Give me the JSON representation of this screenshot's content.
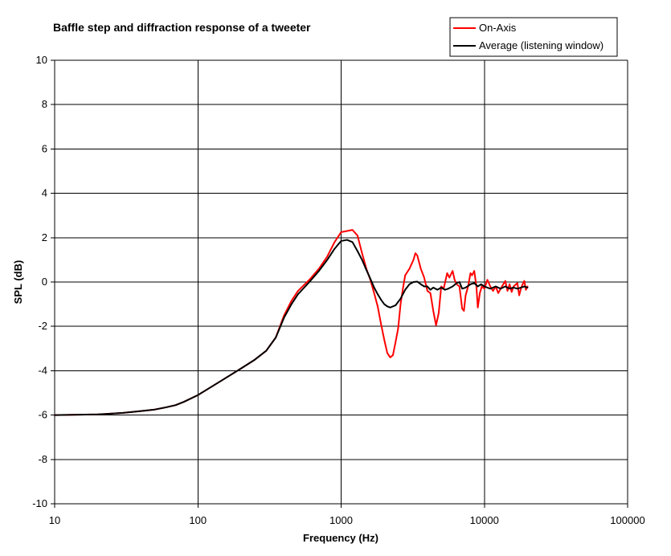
{
  "chart_data": {
    "type": "line",
    "title": "Baffle step and diffraction response of a tweeter",
    "xlabel": "Frequency (Hz)",
    "ylabel": "SPL (dB)",
    "x_scale": "log",
    "xlim": [
      10,
      100000
    ],
    "ylim": [
      -10,
      10
    ],
    "x_ticks": [
      "10",
      "100",
      "1000",
      "10000",
      "100000"
    ],
    "y_ticks": [
      "10",
      "8",
      "6",
      "4",
      "2",
      "0",
      "-2",
      "-4",
      "-6",
      "-8",
      "-10"
    ],
    "grid": "major",
    "legend_position": "top-right",
    "series": [
      {
        "name": "On-Axis",
        "color": "#ff0000",
        "points": [
          [
            10,
            -6.0
          ],
          [
            20,
            -5.97
          ],
          [
            30,
            -5.9
          ],
          [
            40,
            -5.82
          ],
          [
            50,
            -5.75
          ],
          [
            60,
            -5.65
          ],
          [
            70,
            -5.55
          ],
          [
            80,
            -5.4
          ],
          [
            100,
            -5.1
          ],
          [
            150,
            -4.4
          ],
          [
            200,
            -3.9
          ],
          [
            250,
            -3.5
          ],
          [
            300,
            -3.1
          ],
          [
            350,
            -2.5
          ],
          [
            400,
            -1.5
          ],
          [
            450,
            -0.85
          ],
          [
            500,
            -0.4
          ],
          [
            600,
            0.1
          ],
          [
            700,
            0.6
          ],
          [
            800,
            1.15
          ],
          [
            900,
            1.8
          ],
          [
            1000,
            2.25
          ],
          [
            1100,
            2.3
          ],
          [
            1200,
            2.35
          ],
          [
            1300,
            2.1
          ],
          [
            1400,
            1.3
          ],
          [
            1500,
            0.6
          ],
          [
            1600,
            0.1
          ],
          [
            1700,
            -0.5
          ],
          [
            1800,
            -1.1
          ],
          [
            1900,
            -1.9
          ],
          [
            2000,
            -2.6
          ],
          [
            2100,
            -3.2
          ],
          [
            2200,
            -3.4
          ],
          [
            2300,
            -3.3
          ],
          [
            2400,
            -2.7
          ],
          [
            2500,
            -2.1
          ],
          [
            2600,
            -1.0
          ],
          [
            2700,
            -0.3
          ],
          [
            2800,
            0.3
          ],
          [
            3000,
            0.6
          ],
          [
            3200,
            1.0
          ],
          [
            3300,
            1.3
          ],
          [
            3400,
            1.2
          ],
          [
            3600,
            0.6
          ],
          [
            3800,
            0.2
          ],
          [
            4000,
            -0.4
          ],
          [
            4200,
            -0.5
          ],
          [
            4400,
            -1.3
          ],
          [
            4600,
            -1.95
          ],
          [
            4800,
            -1.4
          ],
          [
            5000,
            -0.2
          ],
          [
            5200,
            -0.3
          ],
          [
            5500,
            0.4
          ],
          [
            5700,
            0.2
          ],
          [
            6000,
            0.5
          ],
          [
            6200,
            0.1
          ],
          [
            6400,
            -0.1
          ],
          [
            6700,
            -0.2
          ],
          [
            7000,
            -1.2
          ],
          [
            7200,
            -1.3
          ],
          [
            7400,
            -0.6
          ],
          [
            7700,
            -0.2
          ],
          [
            8000,
            0.4
          ],
          [
            8200,
            0.3
          ],
          [
            8500,
            0.5
          ],
          [
            8800,
            -0.2
          ],
          [
            9000,
            -1.15
          ],
          [
            9300,
            -0.5
          ],
          [
            9600,
            -0.2
          ],
          [
            10000,
            -0.3
          ],
          [
            10500,
            0.1
          ],
          [
            11000,
            -0.2
          ],
          [
            11500,
            -0.4
          ],
          [
            12000,
            -0.2
          ],
          [
            12500,
            -0.5
          ],
          [
            13000,
            -0.3
          ],
          [
            14000,
            0.05
          ],
          [
            14500,
            -0.4
          ],
          [
            15000,
            -0.1
          ],
          [
            15500,
            -0.45
          ],
          [
            16000,
            -0.2
          ],
          [
            17000,
            -0.05
          ],
          [
            17500,
            -0.6
          ],
          [
            18000,
            -0.3
          ],
          [
            18500,
            -0.1
          ],
          [
            19000,
            0.05
          ],
          [
            19500,
            -0.35
          ],
          [
            20000,
            -0.2
          ]
        ]
      },
      {
        "name": "Average (listening window)",
        "color": "#000000",
        "points": [
          [
            10,
            -6.0
          ],
          [
            20,
            -5.97
          ],
          [
            30,
            -5.9
          ],
          [
            40,
            -5.82
          ],
          [
            50,
            -5.75
          ],
          [
            60,
            -5.65
          ],
          [
            70,
            -5.55
          ],
          [
            80,
            -5.4
          ],
          [
            100,
            -5.1
          ],
          [
            150,
            -4.4
          ],
          [
            200,
            -3.9
          ],
          [
            250,
            -3.5
          ],
          [
            300,
            -3.1
          ],
          [
            350,
            -2.5
          ],
          [
            400,
            -1.6
          ],
          [
            450,
            -1.0
          ],
          [
            500,
            -0.55
          ],
          [
            600,
            0.0
          ],
          [
            700,
            0.5
          ],
          [
            800,
            1.0
          ],
          [
            900,
            1.5
          ],
          [
            1000,
            1.85
          ],
          [
            1100,
            1.9
          ],
          [
            1200,
            1.8
          ],
          [
            1300,
            1.4
          ],
          [
            1400,
            1.0
          ],
          [
            1500,
            0.55
          ],
          [
            1600,
            0.15
          ],
          [
            1700,
            -0.25
          ],
          [
            1800,
            -0.55
          ],
          [
            1900,
            -0.8
          ],
          [
            2000,
            -1.0
          ],
          [
            2100,
            -1.1
          ],
          [
            2200,
            -1.15
          ],
          [
            2400,
            -1.05
          ],
          [
            2600,
            -0.75
          ],
          [
            2800,
            -0.35
          ],
          [
            3000,
            -0.1
          ],
          [
            3200,
            0.0
          ],
          [
            3400,
            0.02
          ],
          [
            3600,
            -0.1
          ],
          [
            3800,
            -0.2
          ],
          [
            4000,
            -0.2
          ],
          [
            4200,
            -0.35
          ],
          [
            4400,
            -0.25
          ],
          [
            4700,
            -0.35
          ],
          [
            5000,
            -0.25
          ],
          [
            5300,
            -0.35
          ],
          [
            5600,
            -0.3
          ],
          [
            6000,
            -0.2
          ],
          [
            6400,
            -0.05
          ],
          [
            6700,
            0.0
          ],
          [
            7000,
            -0.3
          ],
          [
            7400,
            -0.25
          ],
          [
            8000,
            -0.1
          ],
          [
            8500,
            -0.05
          ],
          [
            9000,
            -0.2
          ],
          [
            9500,
            -0.1
          ],
          [
            10000,
            -0.2
          ],
          [
            11000,
            -0.3
          ],
          [
            12000,
            -0.2
          ],
          [
            13000,
            -0.3
          ],
          [
            14000,
            -0.2
          ],
          [
            15000,
            -0.3
          ],
          [
            16000,
            -0.25
          ],
          [
            17000,
            -0.3
          ],
          [
            18000,
            -0.25
          ],
          [
            19000,
            -0.2
          ],
          [
            20000,
            -0.25
          ]
        ]
      }
    ]
  }
}
